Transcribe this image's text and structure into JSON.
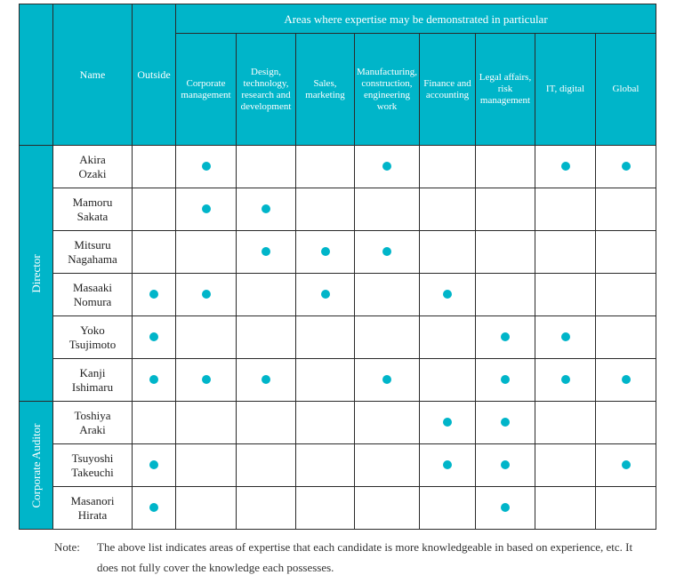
{
  "header": {
    "name": "Name",
    "outside": "Outside",
    "areas_title": "Areas where expertise may be demonstrated in particular",
    "areas": [
      [
        "Corporate",
        "management"
      ],
      [
        "Design,",
        "technology,",
        "research and",
        "development"
      ],
      [
        "Sales,",
        "marketing"
      ],
      [
        "Manufacturing,",
        "construction,",
        "engineering",
        "work"
      ],
      [
        "Finance and",
        "accounting"
      ],
      [
        "Legal affairs,",
        "risk",
        "management"
      ],
      [
        "IT, digital"
      ],
      [
        "Global"
      ]
    ]
  },
  "groups": {
    "director": "Director",
    "auditor": "Corporate Auditor"
  },
  "rows": [
    {
      "name": [
        "Akira",
        "Ozaki"
      ],
      "marks": [
        0,
        1,
        0,
        0,
        1,
        0,
        0,
        1,
        1
      ]
    },
    {
      "name": [
        "Mamoru",
        "Sakata"
      ],
      "marks": [
        0,
        1,
        1,
        0,
        0,
        0,
        0,
        0,
        0
      ]
    },
    {
      "name": [
        "Mitsuru",
        "Nagahama"
      ],
      "marks": [
        0,
        0,
        1,
        1,
        1,
        0,
        0,
        0,
        0
      ]
    },
    {
      "name": [
        "Masaaki",
        "Nomura"
      ],
      "marks": [
        1,
        1,
        0,
        1,
        0,
        1,
        0,
        0,
        0
      ]
    },
    {
      "name": [
        "Yoko",
        "Tsujimoto"
      ],
      "marks": [
        1,
        0,
        0,
        0,
        0,
        0,
        1,
        1,
        0
      ]
    },
    {
      "name": [
        "Kanji",
        "Ishimaru"
      ],
      "marks": [
        1,
        1,
        1,
        0,
        1,
        0,
        1,
        1,
        1
      ]
    },
    {
      "name": [
        "Toshiya",
        "Araki"
      ],
      "marks": [
        0,
        0,
        0,
        0,
        0,
        1,
        1,
        0,
        0
      ]
    },
    {
      "name": [
        "Tsuyoshi",
        "Takeuchi"
      ],
      "marks": [
        1,
        0,
        0,
        0,
        0,
        1,
        1,
        0,
        1
      ]
    },
    {
      "name": [
        "Masanori",
        "Hirata"
      ],
      "marks": [
        1,
        0,
        0,
        0,
        0,
        0,
        1,
        0,
        0
      ]
    }
  ],
  "note": {
    "label": "Note:",
    "text": "The above list indicates areas of expertise that each candidate is more knowledgeable in based on experience, etc. It does not fully cover the knowledge each possesses."
  },
  "colors": {
    "accent": "#00b5c9"
  }
}
